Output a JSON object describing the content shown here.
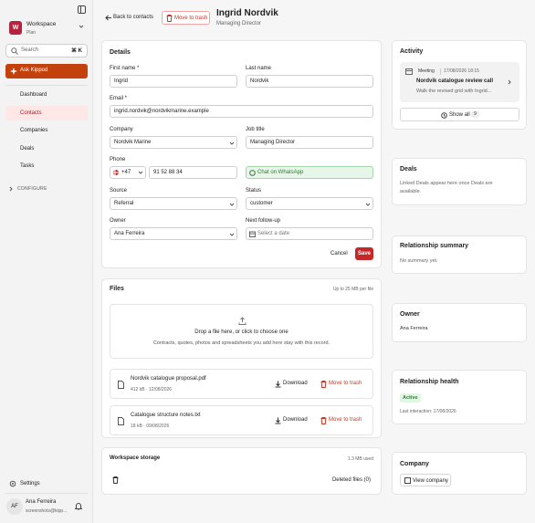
{
  "sidebar": {
    "workspace": {
      "initial": "W",
      "name": "Workspace",
      "plan": "Plan"
    },
    "search": {
      "placeholder": "Search",
      "shortcut": "⌘ K"
    },
    "assistant": "Ask Kippod",
    "nav": [
      "Dashboard",
      "Contacts",
      "Companies",
      "Deals",
      "Tasks"
    ],
    "configure": "CONFIGURE",
    "settings": "Settings",
    "user": {
      "initials": "AF",
      "name": "Ana Ferreira",
      "email": "screenshots@kipp..."
    }
  },
  "header": {
    "back": "Back to contacts",
    "trash": "Move to trash",
    "name": "Ingrid Nordvik",
    "subtitle": "Managing Director"
  },
  "details": {
    "title": "Details",
    "fields": {
      "first_name": {
        "label": "First name *",
        "value": "Ingrid"
      },
      "last_name": {
        "label": "Last name",
        "value": "Nordvik"
      },
      "email": {
        "label": "Email *",
        "value": "ingrid.nordvik@nordvikmarine.example"
      },
      "company": {
        "label": "Company",
        "value": "Nordvik Marine"
      },
      "job_title": {
        "label": "Job title",
        "value": "Managing Director"
      },
      "phone": {
        "label": "Phone",
        "country_code": "+47",
        "value": "91 52 88 34"
      },
      "source": {
        "label": "Source",
        "value": "Referral"
      },
      "status": {
        "label": "Status",
        "value": "customer"
      },
      "owner": {
        "label": "Owner",
        "value": "Ana Ferreira"
      },
      "follow_up": {
        "label": "Next follow-up",
        "value": "Select a date"
      }
    },
    "whatsapp": "Chat on WhatsApp",
    "cancel": "Cancel",
    "save": "Save"
  },
  "files": {
    "title": "Files",
    "limit": "Up to 25 MB per file",
    "dropzone": {
      "title": "Drop a file here, or click to choose one",
      "hint": "Contracts, quotes, photos and spreadsheets you add here stay with this record."
    },
    "items": [
      {
        "name": "Nordvik catalogue proposal.pdf",
        "meta": "412 kB · 12/08/2026"
      },
      {
        "name": "Catalogue structure notes.txt",
        "meta": "18 kB · 09/08/2026"
      }
    ],
    "download": "Download",
    "trash": "Move to trash"
  },
  "storage": {
    "title": "Workspace storage",
    "used": "1.3 MB used",
    "deleted": "Deleted files (0)"
  },
  "activity": {
    "title": "Activity",
    "items": [
      {
        "type": "Meeting",
        "datetime": "17/08/2026 18:15",
        "title": "Nordvik catalogue review call",
        "summary": "Walk the revised grid with Ingrid..."
      }
    ],
    "show_all": "Show all",
    "count": "9"
  },
  "deals": {
    "title": "Deals",
    "empty": "Linked Deals appear here once Deals are available."
  },
  "relationship_summary": {
    "title": "Relationship summary",
    "empty": "No summary yet."
  },
  "owner": {
    "title": "Owner",
    "name": "Ana Ferreira"
  },
  "relationship_health": {
    "title": "Relationship health",
    "status": "Active",
    "last_interaction": "Last interaction: 17/08/2026"
  },
  "company": {
    "title": "Company",
    "action": "View company"
  }
}
